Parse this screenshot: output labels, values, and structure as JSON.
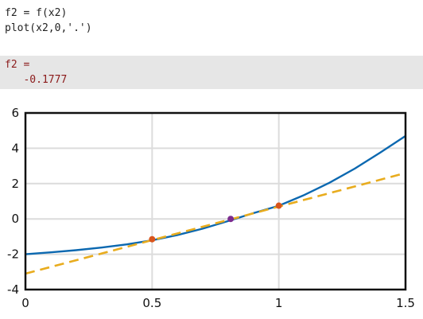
{
  "code_lines": [
    "f2 = f(x2)",
    "plot(x2,0,'.')"
  ],
  "output": {
    "var_line": "f2 =",
    "value_line": "   -0.1777"
  },
  "chart_data": {
    "type": "line",
    "xlim": [
      0,
      1.5
    ],
    "ylim": [
      -4,
      6
    ],
    "xticks": [
      "0",
      "0.5",
      "1",
      "1.5"
    ],
    "yticks": [
      "6",
      "4",
      "2",
      "0",
      "-2",
      "-4"
    ],
    "grid": true,
    "series": [
      {
        "color": "#0b68b0",
        "style": "solid",
        "x": [
          0,
          0.1,
          0.2,
          0.3,
          0.4,
          0.5,
          0.6,
          0.7,
          0.8,
          0.9,
          1.0,
          1.1,
          1.2,
          1.3,
          1.4,
          1.5
        ],
        "y": [
          -2.0,
          -1.89,
          -1.77,
          -1.62,
          -1.44,
          -1.21,
          -0.91,
          -0.55,
          -0.12,
          0.33,
          0.75,
          1.35,
          2.05,
          2.85,
          3.75,
          4.7
        ]
      },
      {
        "color": "#e8ac1e",
        "style": "dashed",
        "x": [
          0,
          1.5
        ],
        "y": [
          -3.1,
          2.6
        ]
      }
    ],
    "points": [
      {
        "x": 0.5,
        "y": -1.15,
        "color": "#d9541b"
      },
      {
        "x": 1.0,
        "y": 0.75,
        "color": "#d9541b"
      },
      {
        "x": 0.81,
        "y": 0.0,
        "color": "#7b2b8f"
      }
    ]
  }
}
